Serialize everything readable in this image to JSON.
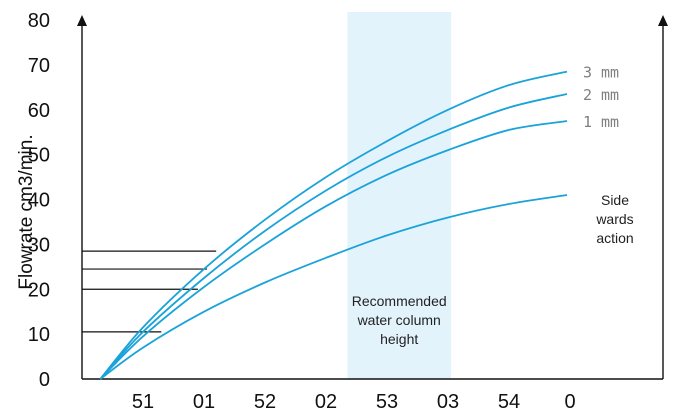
{
  "chart_data": {
    "type": "line",
    "title": "",
    "xlabel": "",
    "ylabel": "Flowrate  cm3/min.",
    "x_ticks": [
      "51",
      "01",
      "52",
      "02",
      "53",
      "03",
      "54",
      "0"
    ],
    "y_ticks": [
      "0",
      "10",
      "20",
      "30",
      "40",
      "50",
      "60",
      "70",
      "80"
    ],
    "ylim": [
      0,
      80
    ],
    "xlim": [
      0,
      8.4
    ],
    "grid": false,
    "band": {
      "x_range": [
        4.35,
        6.05
      ],
      "label": [
        "Recommended",
        "water column",
        "height"
      ],
      "color": "#e3f3fc"
    },
    "side_label": [
      "Side",
      "wards",
      "action"
    ],
    "series": [
      {
        "name": "3 mm",
        "color": "#1aa3d9",
        "x": [
          0.3,
          1.0,
          2.0,
          3.0,
          4.0,
          5.0,
          6.0,
          7.0,
          7.95
        ],
        "y": [
          0,
          11.5,
          24.5,
          35.5,
          45,
          53,
          60,
          65.5,
          68.5
        ]
      },
      {
        "name": "2 mm",
        "color": "#1aa3d9",
        "x": [
          0.3,
          1.0,
          2.0,
          3.0,
          4.0,
          5.0,
          6.0,
          7.0,
          7.95
        ],
        "y": [
          0,
          10.5,
          22.5,
          33,
          42,
          49.5,
          55.5,
          60.5,
          63.5
        ]
      },
      {
        "name": "1 mm",
        "color": "#1aa3d9",
        "x": [
          0.3,
          1.0,
          2.0,
          3.0,
          4.0,
          5.0,
          6.0,
          7.0,
          7.95
        ],
        "y": [
          0,
          9.5,
          20.5,
          30,
          38.5,
          45.5,
          51,
          55.5,
          57.5
        ]
      },
      {
        "name": "",
        "color": "#1aa3d9",
        "x": [
          0.3,
          1.0,
          2.0,
          3.0,
          4.0,
          5.0,
          6.0,
          7.0,
          7.95
        ],
        "y": [
          0,
          7,
          15,
          21.5,
          27,
          32,
          36,
          39,
          41
        ]
      }
    ],
    "reference_lines": [
      {
        "y": 28.5,
        "x_end": 2.2
      },
      {
        "y": 24.5,
        "x_end": 2.05
      },
      {
        "y": 20,
        "x_end": 1.9
      },
      {
        "y": 10.5,
        "x_end": 1.3
      }
    ]
  }
}
